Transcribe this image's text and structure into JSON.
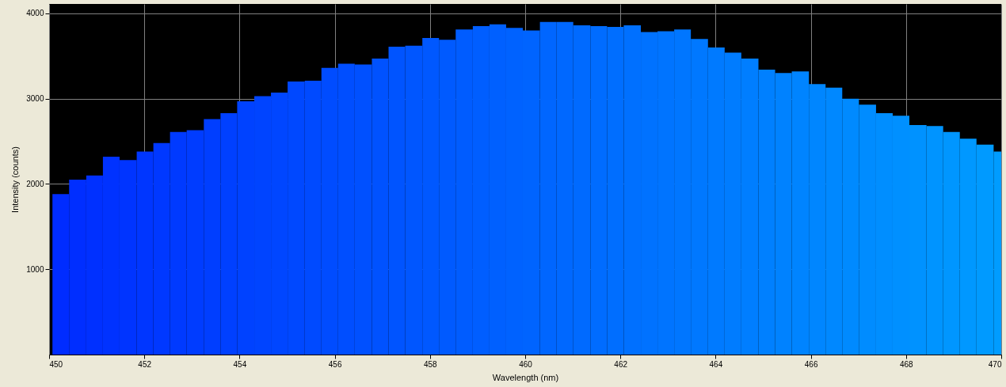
{
  "chart_data": {
    "type": "histogram",
    "xlabel": "Wavelength (nm)",
    "ylabel": "Intensity (counts)",
    "bins": [
      450.07,
      450.42,
      450.78,
      451.13,
      451.48,
      451.84,
      452.19,
      452.54,
      452.89,
      453.25,
      453.6,
      453.95,
      454.31,
      454.66,
      455.01,
      455.37,
      455.72,
      456.07,
      456.42,
      456.78,
      457.13,
      457.48,
      457.84,
      458.19,
      458.54,
      458.9,
      459.25,
      459.6,
      459.95,
      460.31,
      460.66,
      461.01,
      461.37,
      461.72,
      462.07,
      462.43,
      462.78,
      463.13,
      463.48,
      463.84,
      464.19,
      464.54,
      464.9,
      465.25,
      465.6,
      465.96,
      466.31,
      466.66,
      467.01,
      467.37,
      467.72,
      468.07,
      468.43,
      468.78,
      469.13,
      469.48,
      469.84,
      470
    ],
    "values": [
      1880,
      2050,
      2100,
      2320,
      2280,
      2380,
      2480,
      2610,
      2630,
      2760,
      2830,
      2970,
      3030,
      3070,
      3200,
      3210,
      3360,
      3410,
      3400,
      3470,
      3610,
      3620,
      3710,
      3690,
      3810,
      3850,
      3870,
      3830,
      3800,
      3900,
      3900,
      3860,
      3850,
      3840,
      3860,
      3780,
      3790,
      3810,
      3700,
      3600,
      3540,
      3470,
      3340,
      3300,
      3320,
      3170,
      3130,
      3000,
      2930,
      2830,
      2800,
      2690,
      2680,
      2610,
      2530,
      2460,
      2380
    ],
    "colors": [
      "#002cff",
      "#002eff",
      "#0030ff",
      "#0032ff",
      "#0034ff",
      "#0036ff",
      "#0038ff",
      "#003aff",
      "#003cff",
      "#003eff",
      "#0040ff",
      "#0042ff",
      "#0044ff",
      "#0046ff",
      "#0048ff",
      "#004aff",
      "#004cff",
      "#004eff",
      "#0050ff",
      "#0052ff",
      "#0054ff",
      "#0056ff",
      "#0058ff",
      "#005aff",
      "#005cff",
      "#005eff",
      "#0060ff",
      "#0062ff",
      "#0064ff",
      "#0066ff",
      "#0068ff",
      "#006aff",
      "#006cff",
      "#006eff",
      "#0070ff",
      "#0072ff",
      "#0074ff",
      "#0076ff",
      "#0078ff",
      "#007aff",
      "#007cff",
      "#007eff",
      "#0080ff",
      "#0082ff",
      "#0084ff",
      "#0086ff",
      "#0088ff",
      "#008aff",
      "#008cff",
      "#008eff",
      "#0090ff",
      "#0092ff",
      "#0094ff",
      "#0096ff",
      "#0098ff",
      "#009aff",
      "#009cff"
    ],
    "xlim": [
      450,
      470
    ],
    "ylim": [
      0,
      4110
    ],
    "xticks": [
      450,
      452,
      454,
      456,
      458,
      460,
      462,
      464,
      466,
      468,
      470
    ],
    "yticks": [
      1000,
      2000,
      3000,
      4000
    ],
    "grid": true
  }
}
